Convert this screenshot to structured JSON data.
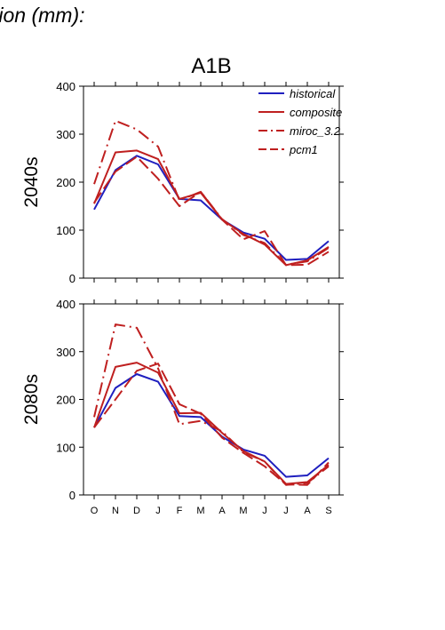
{
  "page_title": "tion (mm):",
  "colors": {
    "historical": "#1f1fbf",
    "projection": "#bf1f1f",
    "axis": "#000000"
  },
  "chart_data": [
    {
      "type": "line",
      "title": "A1B",
      "ylabel": "2040s",
      "xlabel": "",
      "categories": [
        "O",
        "N",
        "D",
        "J",
        "F",
        "M",
        "A",
        "M",
        "J",
        "J",
        "A",
        "S"
      ],
      "ylim": [
        0,
        400
      ],
      "yticks": [
        0,
        100,
        200,
        300,
        400
      ],
      "grid": false,
      "legend": "top-right",
      "series": [
        {
          "name": "historical",
          "style": "solid",
          "color": "#1f1fbf",
          "values": [
            143,
            225,
            255,
            237,
            165,
            162,
            122,
            95,
            82,
            38,
            40,
            77
          ]
        },
        {
          "name": "composite",
          "style": "solid",
          "color": "#bf1f1f",
          "values": [
            155,
            262,
            266,
            248,
            165,
            178,
            122,
            92,
            70,
            27,
            37,
            65
          ]
        },
        {
          "name": "miroc_3.2",
          "style": "dashdot",
          "color": "#bf1f1f",
          "values": [
            196,
            328,
            310,
            274,
            162,
            180,
            123,
            90,
            73,
            28,
            35,
            63
          ]
        },
        {
          "name": "pcm1",
          "style": "dashed",
          "color": "#bf1f1f",
          "values": [
            157,
            222,
            253,
            207,
            150,
            180,
            122,
            81,
            98,
            27,
            28,
            55
          ]
        }
      ]
    },
    {
      "type": "line",
      "title": "",
      "ylabel": "2080s",
      "xlabel": "",
      "categories": [
        "O",
        "N",
        "D",
        "J",
        "F",
        "M",
        "A",
        "M",
        "J",
        "J",
        "A",
        "S"
      ],
      "ylim": [
        0,
        400
      ],
      "yticks": [
        0,
        100,
        200,
        300,
        400
      ],
      "grid": false,
      "series": [
        {
          "name": "historical",
          "style": "solid",
          "color": "#1f1fbf",
          "values": [
            141,
            224,
            253,
            237,
            165,
            163,
            122,
            95,
            82,
            38,
            41,
            77
          ]
        },
        {
          "name": "composite",
          "style": "solid",
          "color": "#bf1f1f",
          "values": [
            141,
            268,
            277,
            256,
            171,
            172,
            130,
            92,
            70,
            23,
            27,
            63
          ]
        },
        {
          "name": "miroc_3.2",
          "style": "dashdot",
          "color": "#bf1f1f",
          "values": [
            163,
            357,
            350,
            265,
            148,
            155,
            133,
            90,
            70,
            21,
            25,
            60
          ]
        },
        {
          "name": "pcm1",
          "style": "dashed",
          "color": "#bf1f1f",
          "values": [
            141,
            200,
            260,
            275,
            190,
            170,
            120,
            88,
            60,
            22,
            21,
            68
          ]
        }
      ]
    }
  ]
}
